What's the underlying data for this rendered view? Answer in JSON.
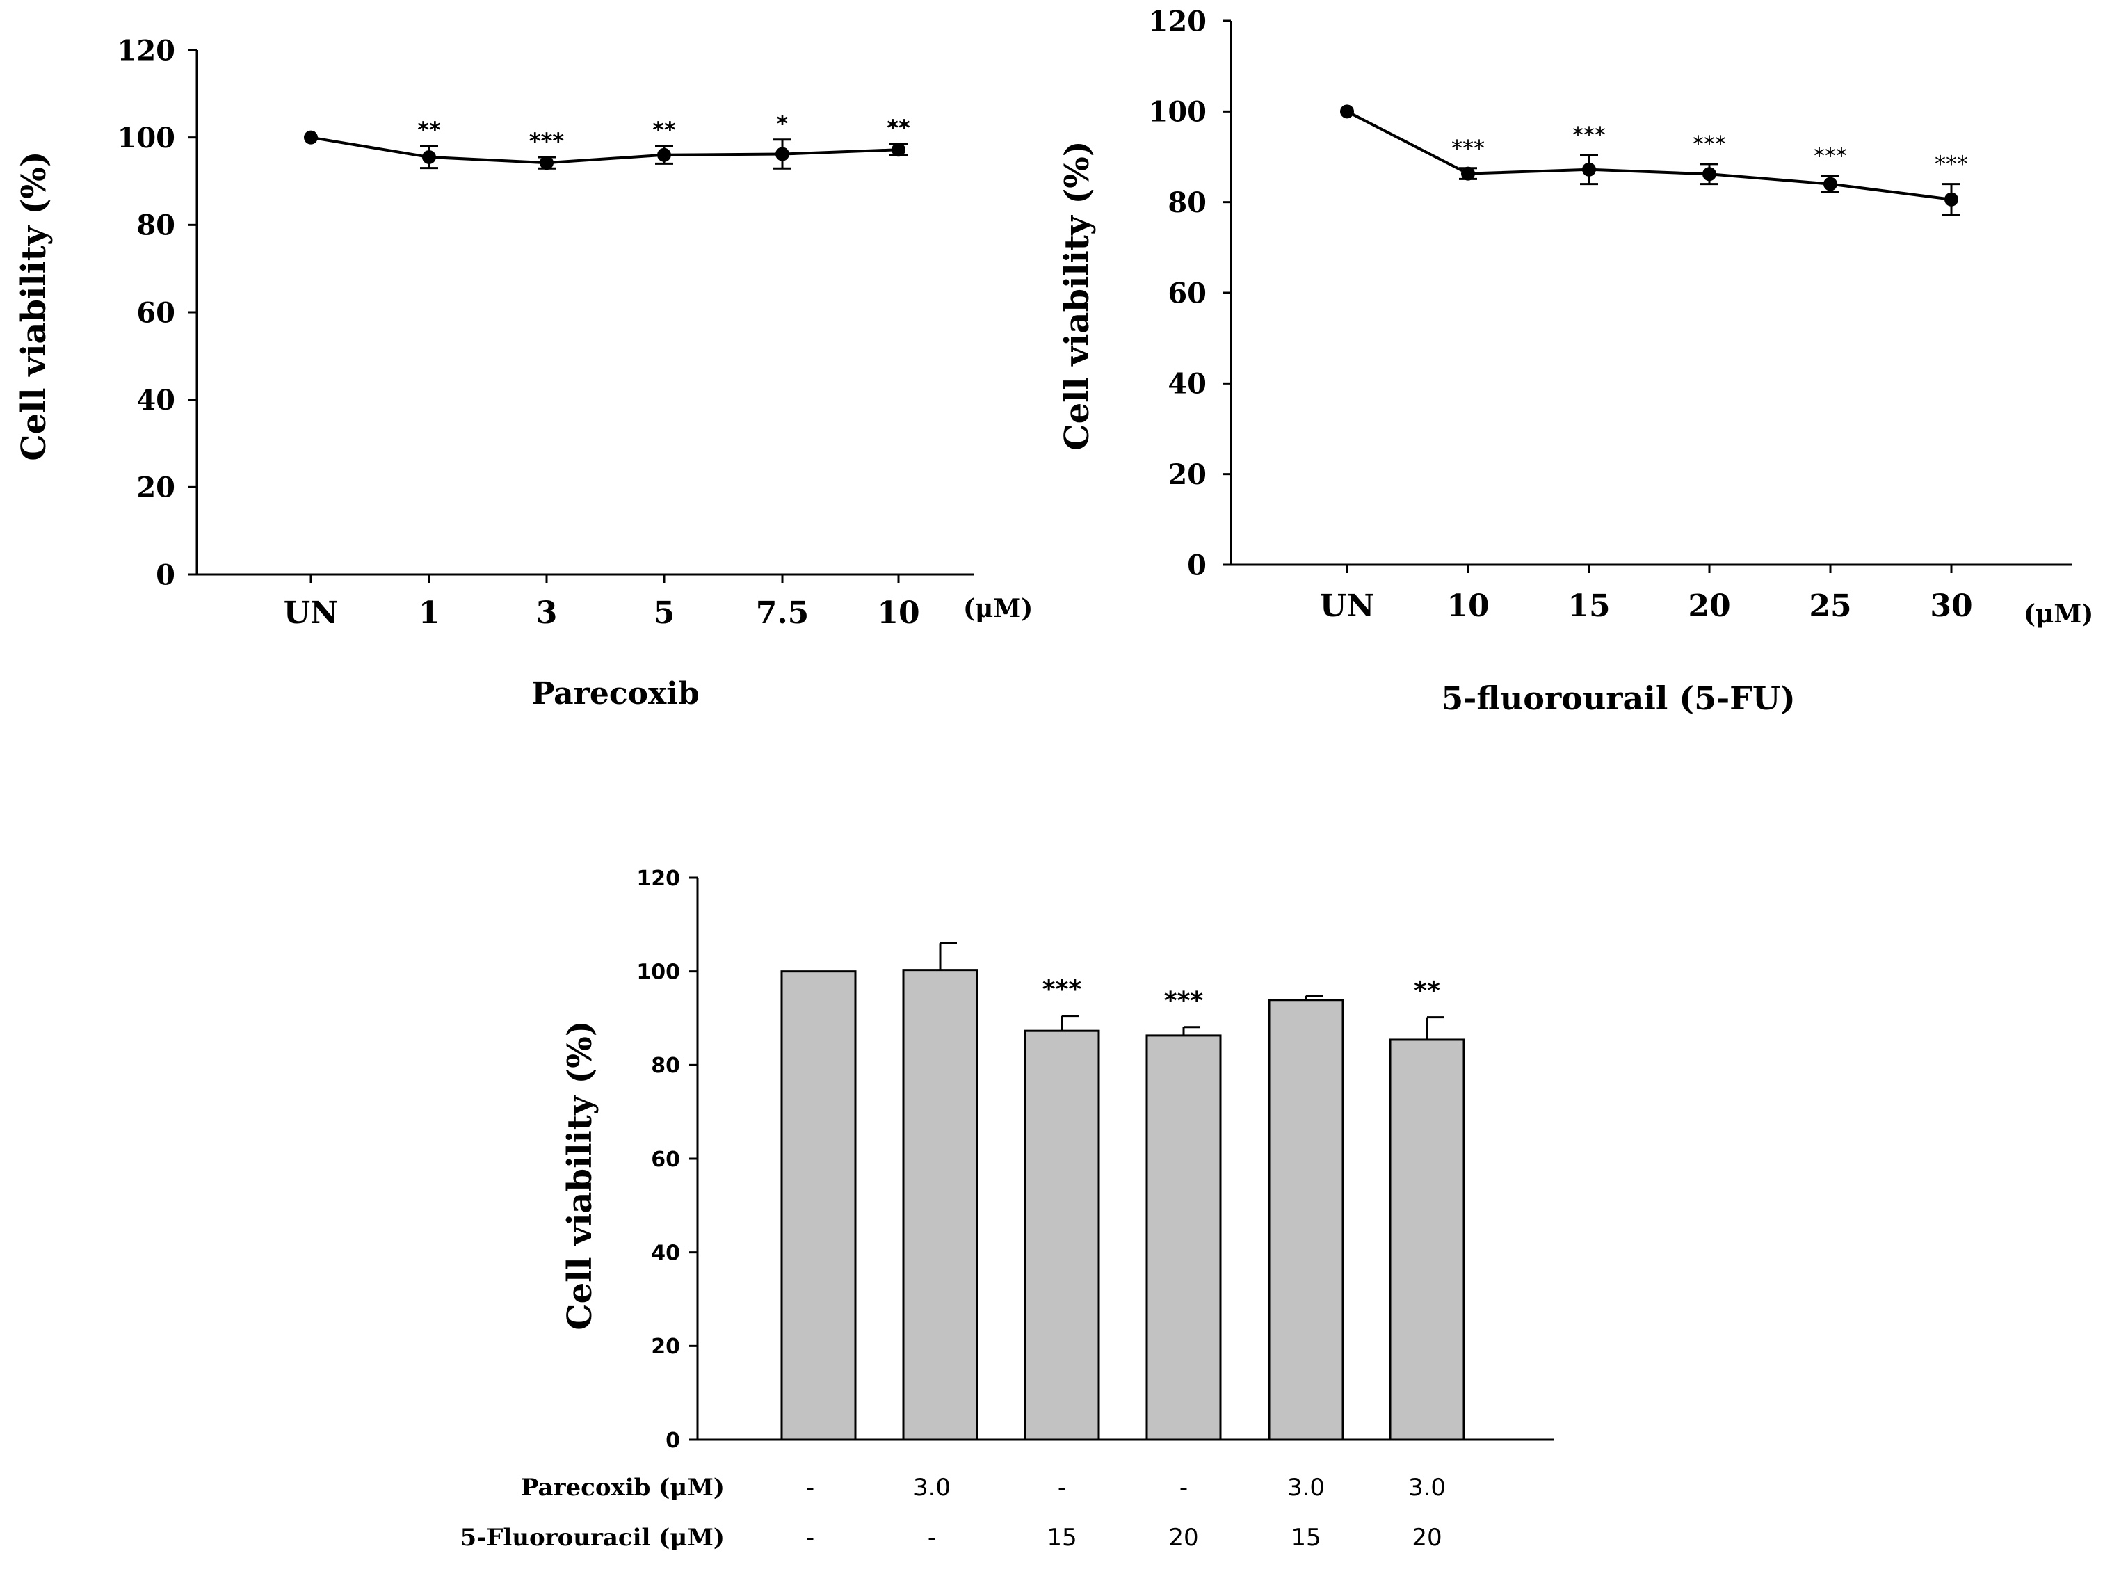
{
  "chart_data": [
    {
      "type": "line",
      "title": "",
      "xlabel": "Parecoxib",
      "unit_label": "(μM)",
      "ylabel": "Cell viability (%)",
      "ylim": [
        0,
        120
      ],
      "yticks": [
        "0",
        "20",
        "40",
        "60",
        "80",
        "100",
        "120"
      ],
      "categories": [
        "UN",
        "1",
        "3",
        "5",
        "7.5",
        "10"
      ],
      "series": [
        {
          "name": "Parecoxib",
          "values": [
            100,
            95.5,
            94.2,
            96,
            96.2,
            97.2
          ],
          "errors": [
            0,
            2.5,
            1.3,
            2,
            3.3,
            1.3
          ],
          "significance": [
            "",
            "**",
            "***",
            "**",
            "*",
            "**"
          ]
        }
      ],
      "colors": {
        "line": "#000000",
        "sig": "#000000"
      }
    },
    {
      "type": "line",
      "title": "",
      "xlabel": "5-fluorourail  (5-FU)",
      "unit_label": "(μM)",
      "ylabel": "Cell viability (%)",
      "ylim": [
        0,
        120
      ],
      "yticks": [
        "0",
        "20",
        "40",
        "60",
        "80",
        "100",
        "120"
      ],
      "categories": [
        "UN",
        "10",
        "15",
        "20",
        "25",
        "30"
      ],
      "series": [
        {
          "name": "5-FU",
          "values": [
            100,
            86.3,
            87.2,
            86.2,
            84,
            80.6
          ],
          "errors": [
            0,
            1.2,
            3.2,
            2.2,
            1.8,
            3.4
          ],
          "significance": [
            "",
            "***",
            "***",
            "***",
            "***",
            "***"
          ]
        }
      ],
      "colors": {
        "line": "#000000",
        "sig": "#8c8c8c"
      }
    },
    {
      "type": "bar",
      "title": "",
      "ylabel": "Cell viability (%)",
      "ylim": [
        0,
        120
      ],
      "yticks": [
        "0",
        "20",
        "40",
        "60",
        "80",
        "100",
        "120"
      ],
      "row_labels": [
        "Parecoxib (μM)",
        "5-Fluorouracil (μM)"
      ],
      "rows": [
        [
          "-",
          "3.0",
          "-",
          "-",
          "3.0",
          "3.0"
        ],
        [
          "-",
          "-",
          "15",
          "20",
          "15",
          "20"
        ]
      ],
      "values": [
        100,
        100.3,
        87.3,
        86.3,
        93.9,
        85.4
      ],
      "errors": [
        0,
        5.7,
        3.2,
        1.8,
        0.9,
        4.8
      ],
      "significance": [
        "",
        "",
        "***",
        "***",
        "",
        "**"
      ],
      "colors": {
        "bar_fill": "#c2c2c2",
        "bar_stroke": "#000000"
      }
    }
  ]
}
